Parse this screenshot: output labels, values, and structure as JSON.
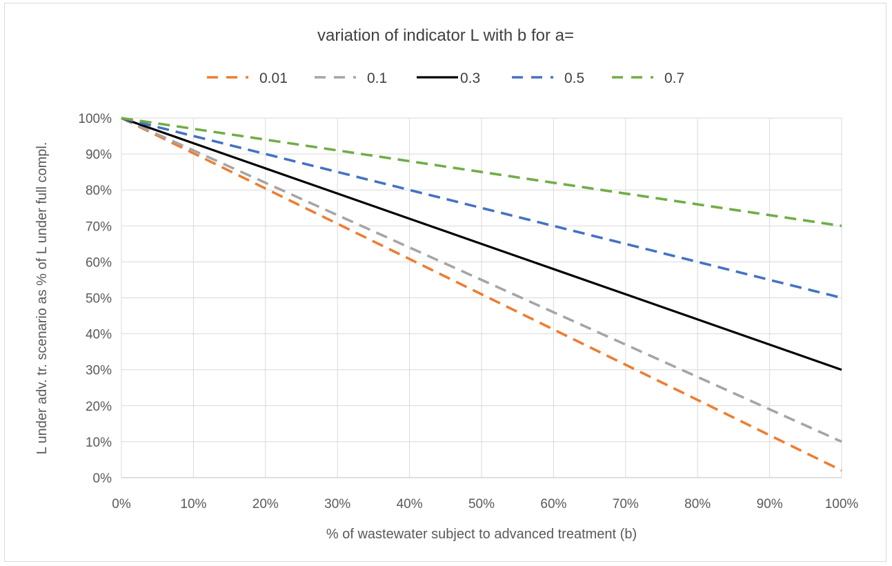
{
  "chart_data": {
    "type": "line",
    "title": "variation of indicator L with b for a=",
    "xlabel": "% of wastewater subject to advanced treatment  (b)",
    "ylabel": "L under adv. tr. scenario  as % of L under full compl.",
    "x": [
      0,
      10,
      20,
      30,
      40,
      50,
      60,
      70,
      80,
      90,
      100
    ],
    "x_tick_labels": [
      "0%",
      "10%",
      "20%",
      "30%",
      "40%",
      "50%",
      "60%",
      "70%",
      "80%",
      "90%",
      "100%"
    ],
    "y_tick_labels": [
      "0%",
      "10%",
      "20%",
      "30%",
      "40%",
      "50%",
      "60%",
      "70%",
      "80%",
      "90%",
      "100%"
    ],
    "xlim": [
      0,
      100
    ],
    "ylim": [
      0,
      100
    ],
    "grid": true,
    "legend_position": "top",
    "series": [
      {
        "name": "0.01",
        "color": "#ed7d31",
        "style": "dashed",
        "values": [
          100,
          90.2,
          80.4,
          70.6,
          60.8,
          51,
          41.2,
          31.4,
          21.6,
          11.8,
          2
        ]
      },
      {
        "name": "0.1",
        "color": "#a5a5a5",
        "style": "dashed",
        "values": [
          100,
          91,
          82,
          73,
          64,
          55,
          46,
          37,
          28,
          19,
          10
        ]
      },
      {
        "name": "0.3",
        "color": "#000000",
        "style": "solid",
        "values": [
          100,
          93,
          86,
          79,
          72,
          65,
          58,
          51,
          44,
          37,
          30
        ]
      },
      {
        "name": "0.5",
        "color": "#4472c4",
        "style": "dashed",
        "values": [
          100,
          95,
          90,
          85,
          80,
          75,
          70,
          65,
          60,
          55,
          50
        ]
      },
      {
        "name": "0.7",
        "color": "#70ad47",
        "style": "dashed",
        "values": [
          100,
          97,
          94,
          91,
          88,
          85,
          82,
          79,
          76,
          73,
          70
        ]
      }
    ]
  }
}
